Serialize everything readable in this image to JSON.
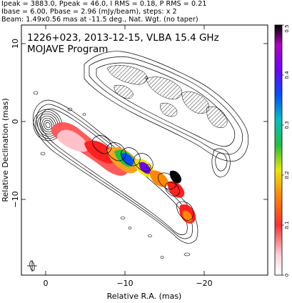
{
  "header": {
    "line1": "Ipeak = 3883.0, Ppeak = 46.0, I RMS = 0.18, P RMS = 0.21",
    "line2": "Ibase = 6.00, Pbase = 2.96 (mJy/beam), steps: x 2",
    "line3": "Beam: 1.49x0.56 mas at -11.5 deg., Nat. Wgt. (no taper)"
  },
  "plot": {
    "title": "1226+023, 2013-12-15, VLBA 15.4 GHz",
    "subtitle": "MOJAVE Program",
    "xlabel": "Relative R.A. (mas)",
    "ylabel": "Relative Declination (mas)",
    "xticks": [
      "0",
      "−10",
      "−20"
    ],
    "yticks": [
      "10",
      "0",
      "−10"
    ],
    "colorbar_ticks": [
      "0",
      "0.1",
      "0.2",
      "0.3",
      "0.4",
      "0.5"
    ],
    "colorbar_colors": [
      "#ffffff",
      "#ffd0d8",
      "#ff3030",
      "#ff8800",
      "#e8e800",
      "#20c040",
      "#00c0c0",
      "#0050ff",
      "#7000ff",
      "#b000c0",
      "#000000"
    ]
  }
}
